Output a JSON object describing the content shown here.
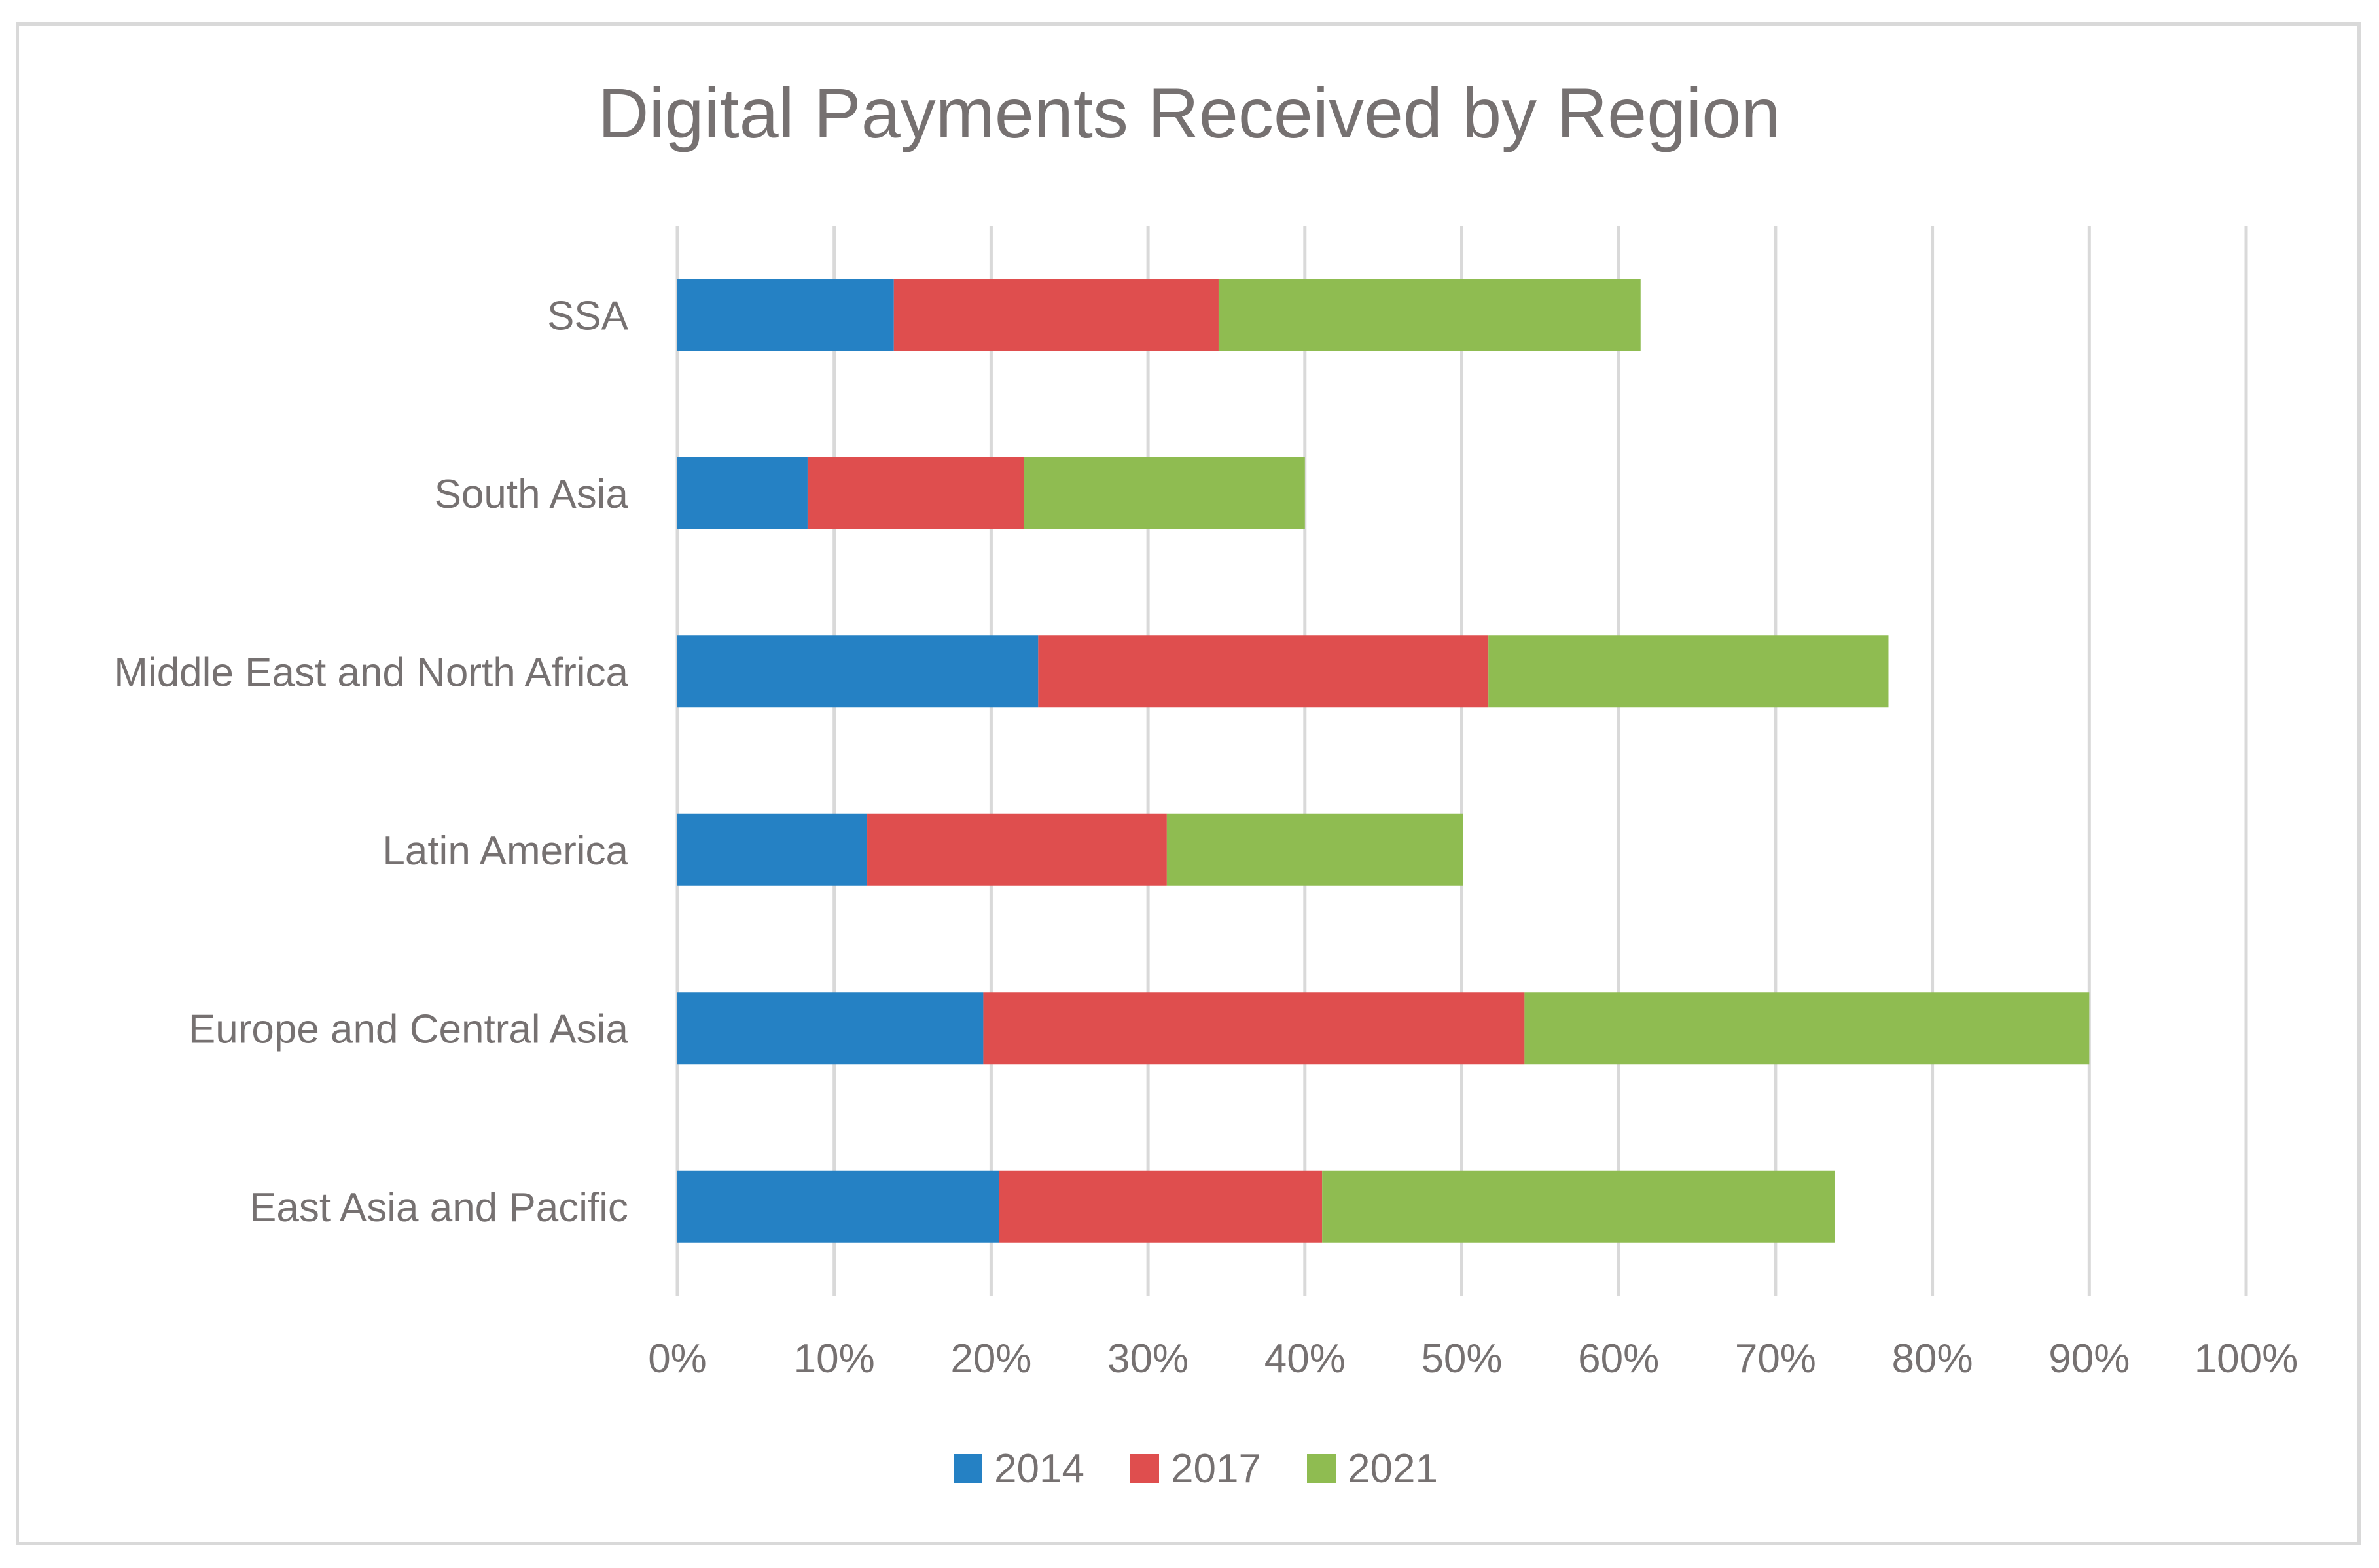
{
  "chart_data": {
    "type": "bar",
    "orientation": "horizontal",
    "stacked": true,
    "title": "Digital Payments Received by Region",
    "xlabel": "",
    "ylabel": "",
    "categories": [
      "SSA",
      "South Asia",
      "Middle East and North Africa",
      "Latin America",
      "Europe and Central Asia",
      "East Asia and Pacific"
    ],
    "series": [
      {
        "name": "2014",
        "color": "#2581c4",
        "values": [
          0.138,
          0.083,
          0.23,
          0.121,
          0.195,
          0.205
        ]
      },
      {
        "name": "2017",
        "color": "#df4e4e",
        "values": [
          0.207,
          0.138,
          0.287,
          0.191,
          0.345,
          0.206
        ]
      },
      {
        "name": "2021",
        "color": "#8fbc51",
        "values": [
          0.269,
          0.179,
          0.255,
          0.189,
          0.36,
          0.327
        ]
      }
    ],
    "xlim": [
      0,
      1
    ],
    "xticks": [
      "0%",
      "10%",
      "20%",
      "30%",
      "40%",
      "50%",
      "60%",
      "70%",
      "80%",
      "90%",
      "100%"
    ],
    "grid": true,
    "legend_position": "bottom"
  }
}
